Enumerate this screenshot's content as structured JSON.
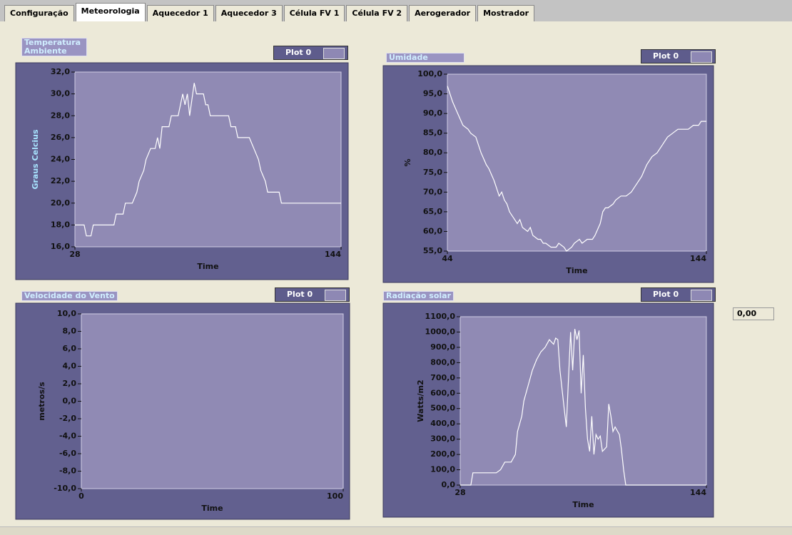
{
  "tabs": [
    "Configuração",
    "Meteorologia",
    "Aquecedor 1",
    "Aquecedor 3",
    "Célula FV 1",
    "Célula FV 2",
    "Aerogerador",
    "Mostrador"
  ],
  "active_tab": 1,
  "indicator": "0,00",
  "chart_data": [
    {
      "type": "line",
      "title": "Temperatura Ambiente",
      "x_label": "Time",
      "y_label": "Graus Celcius",
      "xlim": [
        28,
        144
      ],
      "xticks": [
        28,
        144
      ],
      "ylim": [
        16,
        32
      ],
      "yticks": [
        {
          "value": 16,
          "label": "16,0"
        },
        {
          "value": 18,
          "label": "18,0"
        },
        {
          "value": 20,
          "label": "20,0"
        },
        {
          "value": 22,
          "label": "22,0"
        },
        {
          "value": 24,
          "label": "24,0"
        },
        {
          "value": 26,
          "label": "26,0"
        },
        {
          "value": 28,
          "label": "28,0"
        },
        {
          "value": 30,
          "label": "30,0"
        },
        {
          "value": 32,
          "label": "32,0"
        }
      ],
      "x": [
        28,
        32,
        33,
        35,
        36,
        45,
        46,
        49,
        50,
        53,
        55,
        56,
        58,
        59,
        61,
        63,
        64,
        65,
        66,
        69,
        70,
        73,
        74,
        75,
        76,
        77,
        78,
        80,
        81,
        84,
        85,
        86,
        87,
        95,
        96,
        98,
        99,
        104,
        106,
        108,
        109,
        111,
        112,
        117,
        118,
        144
      ],
      "series": [
        {
          "name": "Plot 0",
          "color": "#ffffff",
          "values": [
            18,
            18,
            17,
            17,
            18,
            18,
            19,
            19,
            20,
            20,
            21,
            22,
            23,
            24,
            25,
            25,
            26,
            25,
            27,
            27,
            28,
            28,
            29,
            30,
            29,
            30,
            28,
            31,
            30,
            30,
            29,
            29,
            28,
            28,
            27,
            27,
            26,
            26,
            25,
            24,
            23,
            22,
            21,
            21,
            20,
            20
          ]
        }
      ]
    },
    {
      "type": "line",
      "title": "Umidade",
      "x_label": "Time",
      "y_label": "%",
      "xlim": [
        44,
        144
      ],
      "xticks": [
        44,
        144
      ],
      "ylim": [
        55,
        100
      ],
      "yticks": [
        {
          "value": 55,
          "label": "55,0"
        },
        {
          "value": 60,
          "label": "60,0"
        },
        {
          "value": 65,
          "label": "65,0"
        },
        {
          "value": 70,
          "label": "70,0"
        },
        {
          "value": 75,
          "label": "75,0"
        },
        {
          "value": 80,
          "label": "80,0"
        },
        {
          "value": 85,
          "label": "85,0"
        },
        {
          "value": 90,
          "label": "90,0"
        },
        {
          "value": 95,
          "label": "95,0"
        },
        {
          "value": 100,
          "label": "100,0"
        }
      ],
      "x": [
        44,
        46,
        48,
        50,
        52,
        53,
        55,
        57,
        59,
        60,
        62,
        63,
        64,
        65,
        66,
        67,
        68,
        70,
        71,
        72,
        73,
        75,
        76,
        77,
        79,
        80,
        81,
        82,
        84,
        86,
        87,
        89,
        90,
        92,
        93,
        95,
        96,
        98,
        100,
        101,
        103,
        104,
        105,
        106,
        108,
        109,
        111,
        113,
        115,
        117,
        119,
        121,
        123,
        125,
        127,
        129,
        131,
        133,
        135,
        137,
        139,
        141,
        142,
        144
      ],
      "series": [
        {
          "name": "Plot 0",
          "color": "#ffffff",
          "values": [
            97,
            93,
            90,
            87,
            86,
            85,
            84,
            80,
            77,
            76,
            73,
            71,
            69,
            70,
            68,
            67,
            65,
            63,
            62,
            63,
            61,
            60,
            61,
            59,
            58,
            58,
            57,
            57,
            56,
            56,
            57,
            56,
            55,
            56,
            57,
            58,
            57,
            58,
            58,
            59,
            62,
            65,
            66,
            66,
            67,
            68,
            69,
            69,
            70,
            72,
            74,
            77,
            79,
            80,
            82,
            84,
            85,
            86,
            86,
            86,
            87,
            87,
            88,
            88
          ]
        }
      ]
    },
    {
      "type": "line",
      "title": "Velocidade do Vento",
      "x_label": "Time",
      "y_label": "metros/s",
      "xlim": [
        0,
        100
      ],
      "xticks": [
        0,
        100
      ],
      "ylim": [
        -10,
        10
      ],
      "yticks": [
        {
          "value": -10,
          "label": "-10,0"
        },
        {
          "value": -8,
          "label": "-8,0"
        },
        {
          "value": -6,
          "label": "-6,0"
        },
        {
          "value": -4,
          "label": "-4,0"
        },
        {
          "value": -2,
          "label": "-2,0"
        },
        {
          "value": 0,
          "label": "0,0"
        },
        {
          "value": 2,
          "label": "2,0"
        },
        {
          "value": 4,
          "label": "4,0"
        },
        {
          "value": 6,
          "label": "6,0"
        },
        {
          "value": 8,
          "label": "8,0"
        },
        {
          "value": 10,
          "label": "10,0"
        }
      ],
      "x": [],
      "series": [
        {
          "name": "Plot 0",
          "color": "#ffffff",
          "values": []
        }
      ]
    },
    {
      "type": "line",
      "title": "Radiação solar",
      "x_label": "Time",
      "y_label": "Watts/m2",
      "xlim": [
        28,
        144
      ],
      "xticks": [
        28,
        144
      ],
      "ylim": [
        0,
        1100
      ],
      "yticks": [
        {
          "value": 0,
          "label": "0,0"
        },
        {
          "value": 100,
          "label": "100,0"
        },
        {
          "value": 200,
          "label": "200,0"
        },
        {
          "value": 300,
          "label": "300,0"
        },
        {
          "value": 400,
          "label": "400,0"
        },
        {
          "value": 500,
          "label": "500,0"
        },
        {
          "value": 600,
          "label": "600,0"
        },
        {
          "value": 700,
          "label": "700,0"
        },
        {
          "value": 800,
          "label": "800,0"
        },
        {
          "value": 900,
          "label": "900,0"
        },
        {
          "value": 1000,
          "label": "1000,0"
        },
        {
          "value": 1100,
          "label": "1100,0"
        }
      ],
      "x": [
        28,
        33,
        34,
        45,
        47,
        49,
        52,
        54,
        55,
        57,
        58,
        60,
        62,
        64,
        66,
        68,
        70,
        72,
        73,
        74,
        75,
        77,
        78,
        80,
        81,
        82,
        83,
        84,
        85,
        86,
        87,
        88,
        89,
        90,
        91,
        92,
        93,
        94,
        95,
        97,
        98,
        99,
        100,
        101,
        103,
        104,
        105,
        106,
        144
      ],
      "series": [
        {
          "name": "Plot 0",
          "color": "#ffffff",
          "values": [
            0,
            0,
            80,
            80,
            100,
            150,
            150,
            200,
            350,
            450,
            550,
            650,
            750,
            820,
            870,
            900,
            950,
            920,
            960,
            950,
            750,
            500,
            380,
            1000,
            750,
            1020,
            950,
            1010,
            600,
            850,
            500,
            300,
            220,
            450,
            200,
            330,
            300,
            320,
            220,
            250,
            530,
            450,
            350,
            380,
            330,
            230,
            100,
            0,
            0
          ]
        }
      ]
    }
  ]
}
